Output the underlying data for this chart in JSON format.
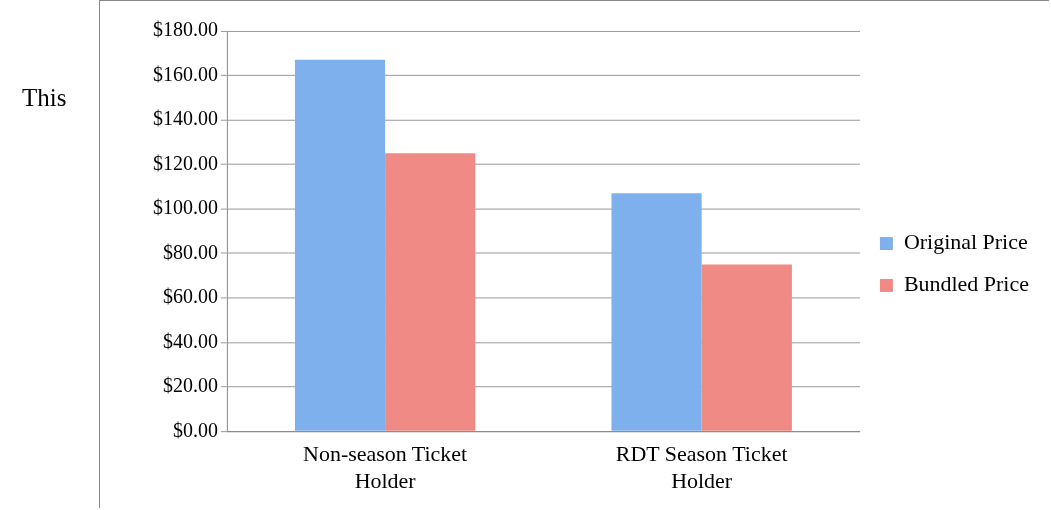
{
  "chart_data": {
    "type": "bar",
    "categories": [
      "Non-season Ticket Holder",
      "RDT Season Ticket Holder"
    ],
    "series": [
      {
        "name": "Original Price",
        "color": "#7fb0ee",
        "values": [
          167,
          107
        ]
      },
      {
        "name": "Bundled Price",
        "color": "#ef8a85",
        "values": [
          125,
          75
        ]
      }
    ],
    "ylim": [
      0,
      180
    ],
    "yticks": [
      {
        "value": 0,
        "label": "$0.00"
      },
      {
        "value": 20,
        "label": "$20.00"
      },
      {
        "value": 40,
        "label": "$40.00"
      },
      {
        "value": 60,
        "label": "$60.00"
      },
      {
        "value": 80,
        "label": "$80.00"
      },
      {
        "value": 100,
        "label": "$100.00"
      },
      {
        "value": 120,
        "label": "$120.00"
      },
      {
        "value": 140,
        "label": "$140.00"
      },
      {
        "value": 160,
        "label": "$160.00"
      },
      {
        "value": 180,
        "label": "$180.00"
      }
    ],
    "grid": "y",
    "legend": "right",
    "annotations": [
      "This"
    ]
  }
}
